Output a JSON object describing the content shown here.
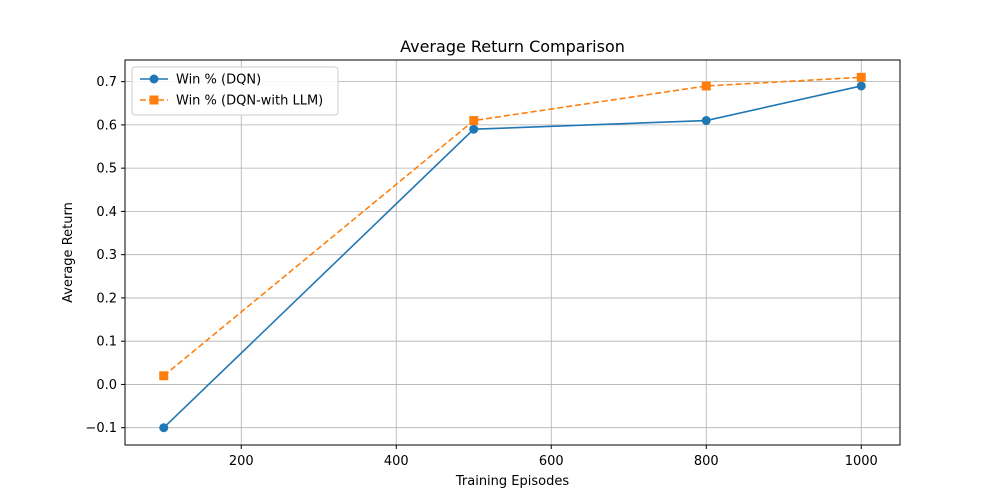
{
  "chart_data": {
    "type": "line",
    "title": "Average Return Comparison",
    "xlabel": "Training Episodes",
    "ylabel": "Average Return",
    "x": [
      100,
      500,
      800,
      1000
    ],
    "xlim": [
      50,
      1050
    ],
    "ylim": [
      -0.14,
      0.75
    ],
    "xticks": [
      200,
      400,
      600,
      800,
      1000
    ],
    "yticks": [
      -0.1,
      0.0,
      0.1,
      0.2,
      0.3,
      0.4,
      0.5,
      0.6,
      0.7
    ],
    "xtick_labels": [
      "200",
      "400",
      "600",
      "800",
      "1000"
    ],
    "ytick_labels": [
      "−0.1",
      "0.0",
      "0.1",
      "0.2",
      "0.3",
      "0.4",
      "0.5",
      "0.6",
      "0.7"
    ],
    "grid": true,
    "legend_position": "top-left",
    "series": [
      {
        "name": "Win % (DQN)",
        "values": [
          -0.1,
          0.59,
          0.61,
          0.69
        ],
        "color": "#1f77b4",
        "marker": "circle",
        "line_style": "solid"
      },
      {
        "name": "Win % (DQN-with LLM)",
        "values": [
          0.02,
          0.61,
          0.69,
          0.71
        ],
        "color": "#ff7f0e",
        "marker": "square",
        "line_style": "dashed"
      }
    ]
  }
}
